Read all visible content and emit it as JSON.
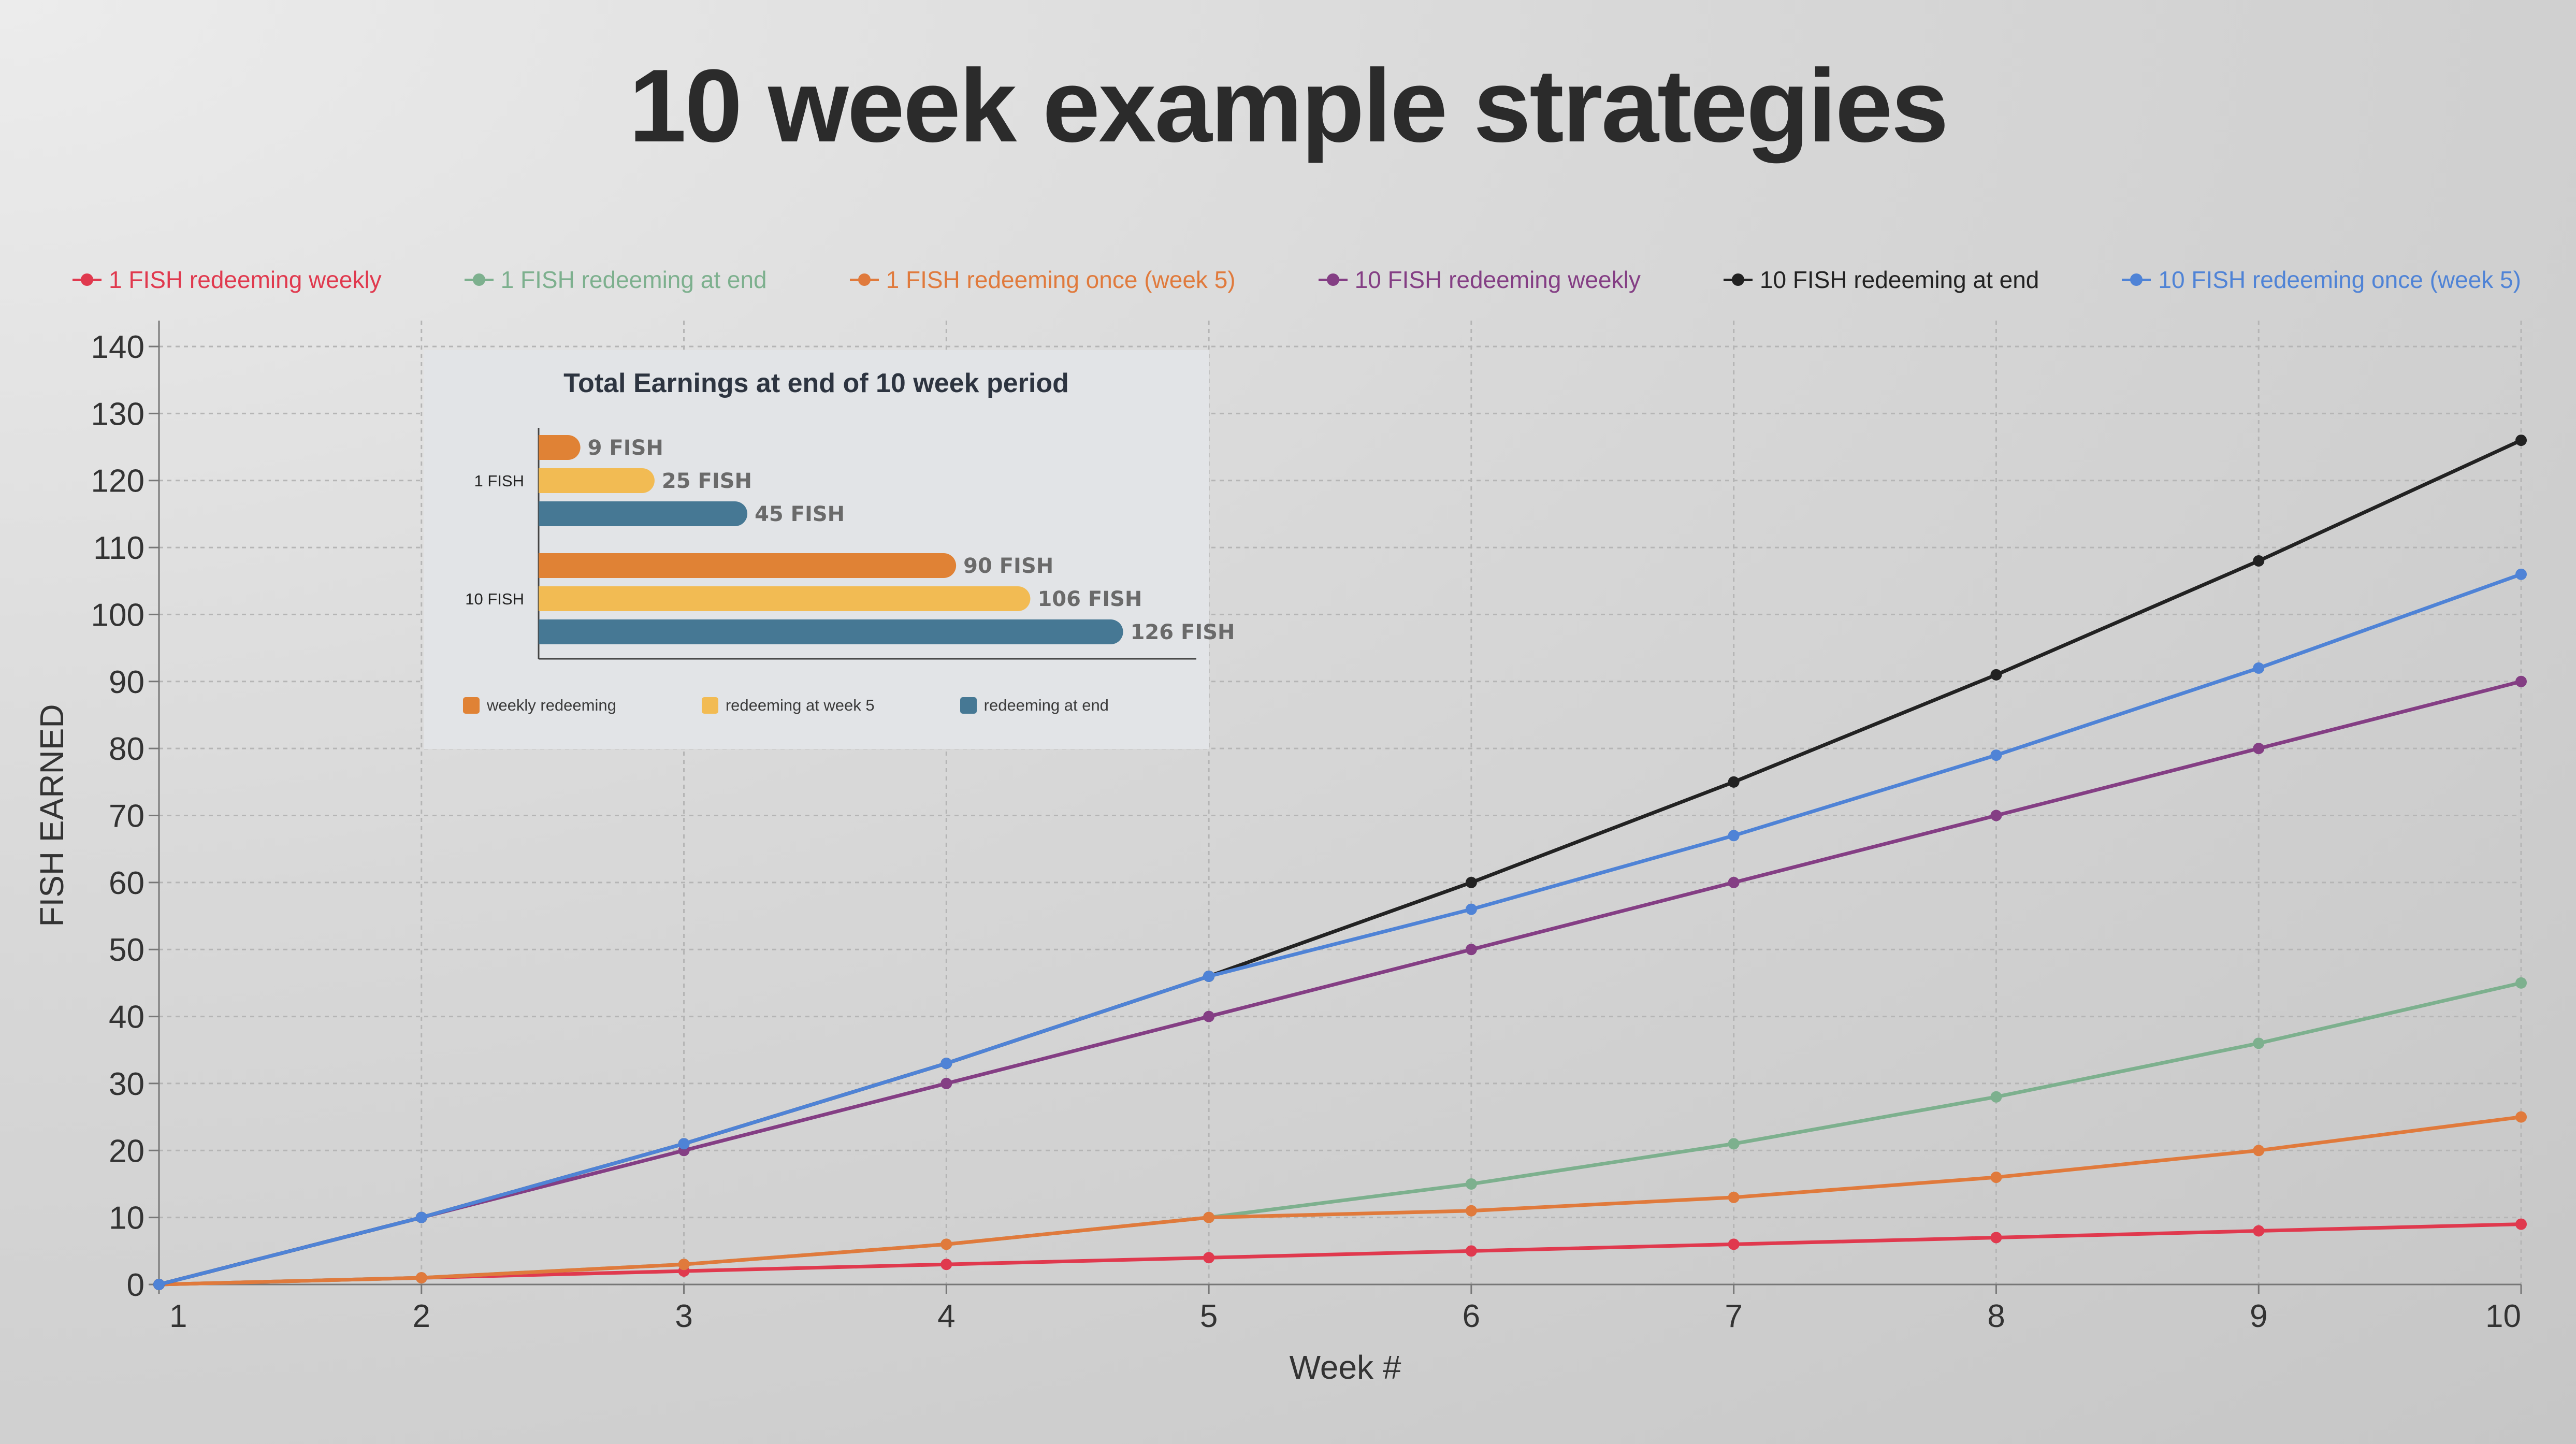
{
  "chart_data": [
    {
      "type": "line",
      "title": "10 week example strategies",
      "xlabel": "Week #",
      "ylabel": "FISH EARNED",
      "x": [
        1,
        2,
        3,
        4,
        5,
        6,
        7,
        8,
        9,
        10
      ],
      "xlim": [
        1,
        10
      ],
      "ylim": [
        0,
        140
      ],
      "y_ticks": [
        "0",
        "10",
        "20",
        "30",
        "40",
        "50",
        "60",
        "70",
        "80",
        "90",
        "100",
        "110",
        "120",
        "130",
        "140"
      ],
      "x_ticks": [
        "1",
        "2",
        "3",
        "4",
        "5",
        "6",
        "7",
        "8",
        "9",
        "10"
      ],
      "grid": true,
      "legend_position": "top",
      "series": [
        {
          "name": "1 FISH redeeming weekly",
          "color": "#e0394e",
          "values": [
            0,
            1,
            2,
            3,
            4,
            5,
            6,
            7,
            8,
            9
          ]
        },
        {
          "name": "1 FISH redeeming at end",
          "color": "#7db08e",
          "values": [
            0,
            1,
            3,
            6,
            10,
            15,
            21,
            28,
            36,
            45
          ]
        },
        {
          "name": "1 FISH redeeming once (week 5)",
          "color": "#e07a3c",
          "values": [
            0,
            1,
            3,
            6,
            10,
            11,
            13,
            16,
            20,
            25
          ]
        },
        {
          "name": "10 FISH redeeming weekly",
          "color": "#843e84",
          "values": [
            0,
            10,
            20,
            30,
            40,
            50,
            60,
            70,
            80,
            90
          ]
        },
        {
          "name": "10 FISH redeeming at end",
          "color": "#222222",
          "values": [
            0,
            10,
            21,
            33,
            46,
            60,
            75,
            91,
            108,
            126
          ]
        },
        {
          "name": "10 FISH redeeming once (week 5)",
          "color": "#4f83d6",
          "values": [
            0,
            10,
            21,
            33,
            46,
            56,
            67,
            79,
            92,
            106
          ]
        }
      ]
    },
    {
      "type": "bar",
      "orientation": "horizontal",
      "title": "Total Earnings at end of 10 week period",
      "categories": [
        "1 FISH",
        "10 FISH"
      ],
      "xlim": [
        0,
        140
      ],
      "series": [
        {
          "name": "weekly redeeming",
          "color": "#e08235",
          "values": [
            9,
            90
          ],
          "labels": [
            "9 FISH",
            "90 FISH"
          ]
        },
        {
          "name": "redeeming at week 5",
          "color": "#f2bb53",
          "values": [
            25,
            106
          ],
          "labels": [
            "25 FISH",
            "106 FISH"
          ]
        },
        {
          "name": "redeeming at end",
          "color": "#467894",
          "values": [
            45,
            126
          ],
          "labels": [
            "45 FISH",
            "126 FISH"
          ]
        }
      ],
      "legend_position": "bottom"
    }
  ]
}
